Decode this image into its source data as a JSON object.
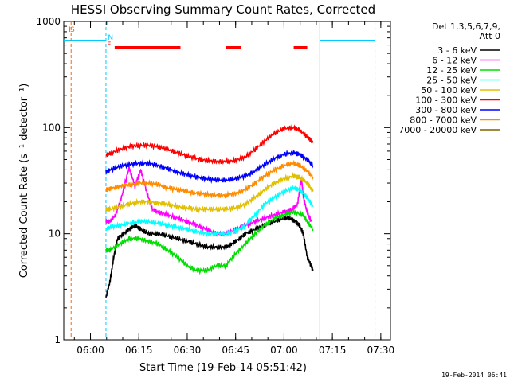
{
  "chart_data": {
    "type": "line",
    "title": "HESSI Observing Summary Count Rates, Corrected",
    "xlabel": "Start Time (19-Feb-14 05:51:42)",
    "ylabel": "Corrected Count Rate (s⁻¹ detector⁻¹)",
    "ylog": true,
    "xlim": [
      5.862,
      7.55
    ],
    "ylim": [
      1,
      1000
    ],
    "xticks": [
      {
        "value": 6.0,
        "label": "06:00"
      },
      {
        "value": 6.25,
        "label": "06:15"
      },
      {
        "value": 6.5,
        "label": "06:30"
      },
      {
        "value": 6.75,
        "label": "06:45"
      },
      {
        "value": 7.0,
        "label": "07:00"
      },
      {
        "value": 7.25,
        "label": "07:15"
      },
      {
        "value": 7.5,
        "label": "07:30"
      }
    ],
    "yticks": [
      {
        "value": 1,
        "label": "1"
      },
      {
        "value": 10,
        "label": "10"
      },
      {
        "value": 100,
        "label": "100"
      },
      {
        "value": 1000,
        "label": "1000"
      }
    ],
    "legend_header": [
      "Det 1,3,5,6,7,9,",
      "Att 0"
    ],
    "legend_position": "right",
    "series": [
      {
        "name": "3 - 6 keV",
        "color": "#000000",
        "x": [
          6.08,
          6.1,
          6.12,
          6.14,
          6.17,
          6.2,
          6.23,
          6.26,
          6.3,
          6.35,
          6.4,
          6.45,
          6.5,
          6.55,
          6.6,
          6.65,
          6.7,
          6.73,
          6.77,
          6.8,
          6.85,
          6.9,
          6.95,
          7.0,
          7.03,
          7.06,
          7.08,
          7.1,
          7.12,
          7.14,
          7.15
        ],
        "y": [
          2.5,
          3.5,
          6,
          9,
          10,
          11,
          12,
          11,
          10,
          10,
          9.5,
          9,
          8.5,
          8,
          7.5,
          7.5,
          7.5,
          8,
          9,
          10,
          11,
          12,
          13,
          14,
          14,
          13,
          12,
          10,
          6,
          5,
          4.5
        ]
      },
      {
        "name": "6 - 12 keV",
        "color": "#ff00ff",
        "x": [
          6.08,
          6.1,
          6.13,
          6.16,
          6.2,
          6.23,
          6.26,
          6.29,
          6.32,
          6.35,
          6.4,
          6.45,
          6.5,
          6.55,
          6.6,
          6.65,
          6.7,
          6.75,
          6.8,
          6.85,
          6.9,
          6.95,
          7.0,
          7.04,
          7.07,
          7.09,
          7.1,
          7.12,
          7.14
        ],
        "y": [
          13,
          13,
          15,
          22,
          42,
          28,
          40,
          25,
          17,
          16,
          15,
          14,
          13,
          12,
          11,
          10,
          10,
          11,
          12,
          13,
          14,
          15,
          16,
          17,
          19,
          34,
          22,
          16,
          13
        ]
      },
      {
        "name": "12 - 25 keV",
        "color": "#00dd00",
        "x": [
          6.08,
          6.1,
          6.15,
          6.2,
          6.25,
          6.3,
          6.35,
          6.4,
          6.45,
          6.5,
          6.55,
          6.6,
          6.65,
          6.7,
          6.75,
          6.8,
          6.85,
          6.9,
          6.95,
          7.0,
          7.05,
          7.1,
          7.12,
          7.15
        ],
        "y": [
          7,
          7,
          8,
          9,
          9,
          8.5,
          8,
          7,
          6,
          5,
          4.5,
          4.5,
          5,
          5,
          6.5,
          8,
          10,
          12,
          14,
          15,
          16,
          15,
          13,
          11
        ]
      },
      {
        "name": "25 - 50 keV",
        "color": "#00ffff",
        "x": [
          6.08,
          6.1,
          6.15,
          6.2,
          6.25,
          6.3,
          6.35,
          6.4,
          6.45,
          6.5,
          6.55,
          6.6,
          6.65,
          6.7,
          6.75,
          6.8,
          6.85,
          6.9,
          6.95,
          7.0,
          7.05,
          7.08,
          7.12,
          7.15
        ],
        "y": [
          11,
          11.5,
          12,
          12.5,
          13,
          13,
          12.5,
          12,
          11.5,
          11,
          10.5,
          10,
          10,
          10,
          10.5,
          12,
          15,
          19,
          22,
          25,
          27,
          26,
          22,
          18
        ]
      },
      {
        "name": "50 - 100 keV",
        "color": "#e0c000",
        "x": [
          6.08,
          6.1,
          6.15,
          6.2,
          6.25,
          6.3,
          6.35,
          6.4,
          6.45,
          6.5,
          6.55,
          6.6,
          6.65,
          6.7,
          6.75,
          6.8,
          6.85,
          6.9,
          6.95,
          7.0,
          7.05,
          7.08,
          7.12,
          7.15
        ],
        "y": [
          17,
          17,
          18,
          19,
          20,
          20,
          19.5,
          19,
          18,
          17.5,
          17,
          17,
          17,
          17,
          17.5,
          19,
          22,
          26,
          30,
          33,
          35,
          34,
          30,
          25
        ]
      },
      {
        "name": "100 - 300 keV",
        "color": "#ff0000",
        "x": [
          6.08,
          6.1,
          6.15,
          6.2,
          6.25,
          6.3,
          6.35,
          6.4,
          6.45,
          6.5,
          6.55,
          6.6,
          6.65,
          6.7,
          6.75,
          6.8,
          6.85,
          6.9,
          6.95,
          7.0,
          7.05,
          7.08,
          7.12,
          7.15
        ],
        "y": [
          55,
          57,
          62,
          66,
          68,
          68,
          66,
          62,
          58,
          54,
          51,
          49,
          48,
          48,
          49,
          53,
          62,
          75,
          88,
          98,
          100,
          95,
          82,
          72
        ]
      },
      {
        "name": "300 - 800 keV",
        "color": "#0000ff",
        "x": [
          6.08,
          6.1,
          6.15,
          6.2,
          6.25,
          6.3,
          6.35,
          6.4,
          6.45,
          6.5,
          6.55,
          6.6,
          6.65,
          6.7,
          6.75,
          6.8,
          6.85,
          6.9,
          6.95,
          7.0,
          7.05,
          7.08,
          7.12,
          7.15
        ],
        "y": [
          38,
          40,
          43,
          45,
          46,
          46,
          44,
          41,
          38,
          36,
          34,
          33,
          32,
          32,
          33,
          35,
          39,
          45,
          51,
          56,
          58,
          56,
          50,
          44
        ]
      },
      {
        "name": "800 - 7000 keV",
        "color": "#ff8c00",
        "x": [
          6.08,
          6.1,
          6.15,
          6.2,
          6.25,
          6.3,
          6.35,
          6.4,
          6.45,
          6.5,
          6.55,
          6.6,
          6.65,
          6.7,
          6.75,
          6.8,
          6.85,
          6.9,
          6.95,
          7.0,
          7.05,
          7.08,
          7.12,
          7.15
        ],
        "y": [
          26,
          26.5,
          28,
          29,
          30,
          30,
          29,
          27,
          26,
          25,
          24,
          23.5,
          23,
          23,
          24,
          26,
          30,
          35,
          40,
          44,
          46,
          44,
          39,
          34
        ]
      },
      {
        "name": "7000 - 20000 keV",
        "color": "#806000",
        "x": [],
        "y": []
      }
    ],
    "annotations": [
      {
        "text": "I",
        "x": 5.887,
        "color": "#ff6600"
      },
      {
        "text": "S",
        "x": 5.895,
        "color": "#ff6600"
      },
      {
        "text": "N",
        "x": 6.09,
        "color": "#00ccff"
      },
      {
        "text": "F",
        "x": 6.085,
        "color": "#ff0000"
      }
    ],
    "vertical_lines": [
      {
        "x": 5.9,
        "color": "#ff6600",
        "style": "dashed"
      },
      {
        "x": 6.08,
        "color": "#00ccff",
        "style": "dashed"
      },
      {
        "x": 7.185,
        "color": "#00ccff",
        "style": "solid"
      },
      {
        "x": 7.47,
        "color": "#00ccff",
        "style": "dashed"
      }
    ],
    "eclipse_line": {
      "color": "#00ccff",
      "segments": [
        [
          5.862,
          6.08
        ],
        [
          7.185,
          7.47
        ]
      ],
      "y": 660
    },
    "flare_bars": {
      "color": "#ff0000",
      "y": 570,
      "segments": [
        [
          6.125,
          6.465
        ],
        [
          6.7,
          6.78
        ],
        [
          7.05,
          7.12
        ]
      ]
    }
  },
  "footer": {
    "timestamp": "19-Feb-2014 06:41"
  }
}
